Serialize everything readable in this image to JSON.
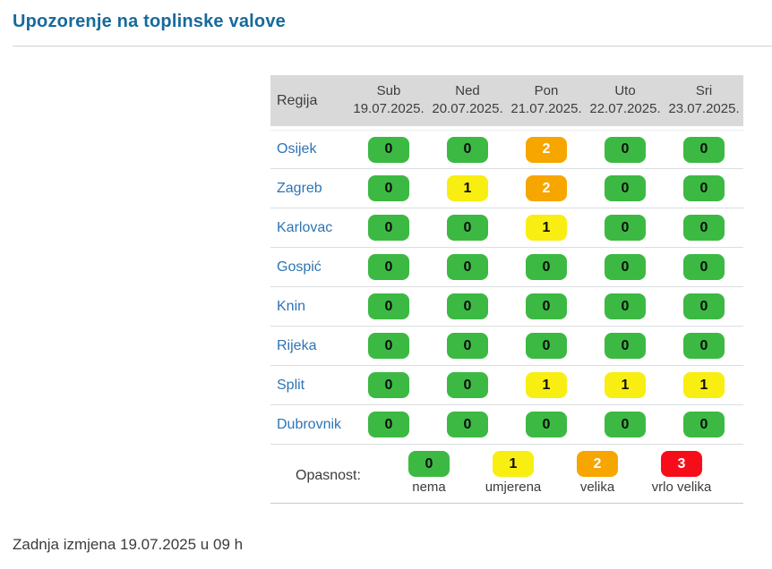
{
  "page": {
    "title": "Upozorenje na toplinske valove",
    "footer": "Zadnja izmjena 19.07.2025 u 09 h"
  },
  "colors": {
    "title_blue": "#176a9b",
    "region_link_blue": "#2e74b5",
    "header_background": "#d9d9d9",
    "level_0_green": "#3cb943",
    "level_1_yellow": "#f8ee12",
    "level_2_orange": "#f7a600",
    "level_3_red": "#f70d1a"
  },
  "table": {
    "region_header": "Regija",
    "day_headers": [
      {
        "day": "Sub",
        "date": "19.07.2025."
      },
      {
        "day": "Ned",
        "date": "20.07.2025."
      },
      {
        "day": "Pon",
        "date": "21.07.2025."
      },
      {
        "day": "Uto",
        "date": "22.07.2025."
      },
      {
        "day": "Sri",
        "date": "23.07.2025."
      }
    ],
    "rows": [
      {
        "region": "Osijek",
        "values": [
          0,
          0,
          2,
          0,
          0
        ]
      },
      {
        "region": "Zagreb",
        "values": [
          0,
          1,
          2,
          0,
          0
        ]
      },
      {
        "region": "Karlovac",
        "values": [
          0,
          0,
          1,
          0,
          0
        ]
      },
      {
        "region": "Gospić",
        "values": [
          0,
          0,
          0,
          0,
          0
        ]
      },
      {
        "region": "Knin",
        "values": [
          0,
          0,
          0,
          0,
          0
        ]
      },
      {
        "region": "Rijeka",
        "values": [
          0,
          0,
          0,
          0,
          0
        ]
      },
      {
        "region": "Split",
        "values": [
          0,
          0,
          1,
          1,
          1
        ]
      },
      {
        "region": "Dubrovnik",
        "values": [
          0,
          0,
          0,
          0,
          0
        ]
      }
    ]
  },
  "legend": {
    "label": "Opasnost:",
    "items": [
      {
        "value": 0,
        "label": "nema"
      },
      {
        "value": 1,
        "label": "umjerena"
      },
      {
        "value": 2,
        "label": "velika"
      },
      {
        "value": 3,
        "label": "vrlo velika"
      }
    ]
  }
}
